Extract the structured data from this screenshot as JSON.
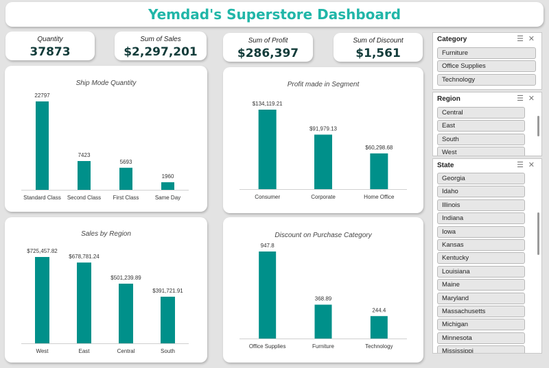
{
  "title": "Yemdad's Superstore Dashboard",
  "kpis": [
    {
      "label": "Quantity",
      "value": "37873"
    },
    {
      "label": "Sum of  Sales",
      "value": "$2,297,201"
    },
    {
      "label": "Sum of Profit",
      "value": "$286,397"
    },
    {
      "label": "Sum of Discount",
      "value": "$1,561"
    }
  ],
  "colors": {
    "bar": "#00908a",
    "title": "#21b6a8"
  },
  "chart_data": [
    {
      "type": "bar",
      "title": "Ship Mode Quantity",
      "categories": [
        "Standard Class",
        "Second Class",
        "First Class",
        "Same Day"
      ],
      "values": [
        22797,
        7423,
        5693,
        1960
      ],
      "value_labels": [
        "22797",
        "7423",
        "5693",
        "1960"
      ],
      "grid": false
    },
    {
      "type": "bar",
      "title": "Profit made in Segment",
      "categories": [
        "Consumer",
        "Corporate",
        "Home Office"
      ],
      "values": [
        134119.21,
        91979.13,
        60298.68
      ],
      "value_labels": [
        "$134,119.21",
        "$91,979.13",
        "$60,298.68"
      ],
      "grid": false
    },
    {
      "type": "bar",
      "title": "Sales by Region",
      "categories": [
        "West",
        "East",
        "Central",
        "South"
      ],
      "values": [
        725457.82,
        678781.24,
        501239.89,
        391721.91
      ],
      "value_labels": [
        "$725,457.82",
        "$678,781.24",
        "$501,239.89",
        "$391,721.91"
      ],
      "grid": false
    },
    {
      "type": "bar",
      "title": "Discount on Purchase Category",
      "categories": [
        "Office Supplies",
        "Furniture",
        "Technology"
      ],
      "values": [
        947.8,
        368.89,
        244.4
      ],
      "value_labels": [
        "947.8",
        "368.89",
        "244.4"
      ],
      "grid": false
    }
  ],
  "slicers": {
    "category": {
      "title": "Category",
      "items": [
        "Furniture",
        "Office Supplies",
        "Technology"
      ]
    },
    "region": {
      "title": "Region",
      "items": [
        "Central",
        "East",
        "South",
        "West"
      ]
    },
    "state": {
      "title": "State",
      "items": [
        "Georgia",
        "Idaho",
        "Illinois",
        "Indiana",
        "Iowa",
        "Kansas",
        "Kentucky",
        "Louisiana",
        "Maine",
        "Maryland",
        "Massachusetts",
        "Michigan",
        "Minnesota",
        "Mississippi"
      ]
    },
    "icons": {
      "multi_select": "multi-select-icon",
      "clear_filter": "clear-filter-icon"
    }
  }
}
